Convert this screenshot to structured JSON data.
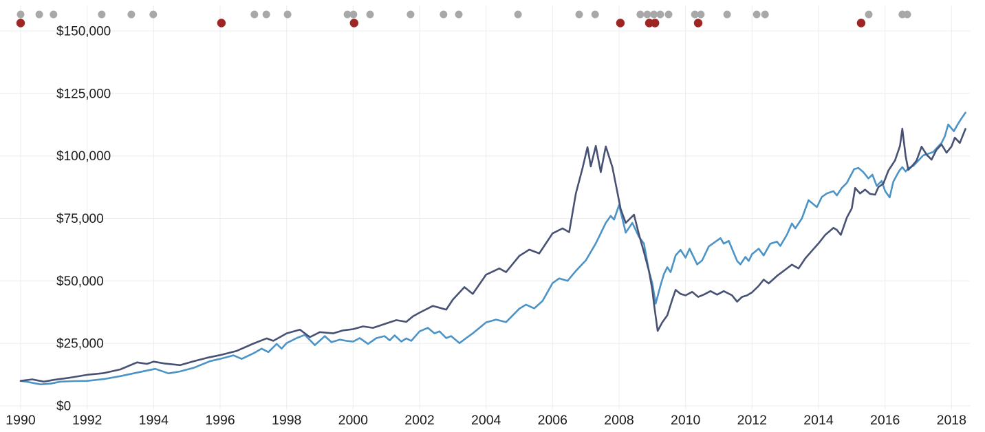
{
  "chart_data": {
    "type": "line",
    "title": "",
    "xlabel": "",
    "ylabel": "",
    "grid": true,
    "legend": "none",
    "background": "#ffffff",
    "gridline_color": "#ececec",
    "label_color": "#1b1b1b",
    "x_axis": {
      "range": [
        1990,
        2018.5
      ],
      "ticks": [
        1990,
        1992,
        1994,
        1996,
        1998,
        2000,
        2002,
        2004,
        2006,
        2008,
        2010,
        2012,
        2014,
        2016,
        2018
      ],
      "tick_labels": [
        "1990",
        "1992",
        "1994",
        "1996",
        "1998",
        "2000",
        "2002",
        "2004",
        "2006",
        "2008",
        "2010",
        "2012",
        "2014",
        "2016",
        "2018"
      ]
    },
    "y_axis": {
      "range": [
        0,
        150000
      ],
      "ticks": [
        0,
        25000,
        50000,
        75000,
        100000,
        125000,
        150000
      ],
      "tick_labels": [
        "$0",
        "$25,000",
        "$50,000",
        "$75,000",
        "$100,000",
        "$125,000",
        "$150,000"
      ]
    },
    "series": [
      {
        "name": "portfolio-light-blue",
        "color": "#4c93c6",
        "points": [
          [
            1990.0,
            10000
          ],
          [
            1990.2,
            9600
          ],
          [
            1990.6,
            8600
          ],
          [
            1990.9,
            8900
          ],
          [
            1991.2,
            9700
          ],
          [
            1991.6,
            9900
          ],
          [
            1992.0,
            10000
          ],
          [
            1992.5,
            10700
          ],
          [
            1993.0,
            11900
          ],
          [
            1993.5,
            13300
          ],
          [
            1994.05,
            14800
          ],
          [
            1994.45,
            13000
          ],
          [
            1994.8,
            13800
          ],
          [
            1995.2,
            15200
          ],
          [
            1995.7,
            17900
          ],
          [
            1996.0,
            18800
          ],
          [
            1996.4,
            20200
          ],
          [
            1996.65,
            18800
          ],
          [
            1997.0,
            21000
          ],
          [
            1997.25,
            22900
          ],
          [
            1997.45,
            21500
          ],
          [
            1997.7,
            24800
          ],
          [
            1997.85,
            22900
          ],
          [
            1998.0,
            25100
          ],
          [
            1998.3,
            27100
          ],
          [
            1998.55,
            28400
          ],
          [
            1998.85,
            24300
          ],
          [
            1999.15,
            27900
          ],
          [
            1999.35,
            25500
          ],
          [
            1999.6,
            26500
          ],
          [
            1999.8,
            26000
          ],
          [
            2000.0,
            25700
          ],
          [
            2000.2,
            27100
          ],
          [
            2000.45,
            24800
          ],
          [
            2000.7,
            27100
          ],
          [
            2000.95,
            27900
          ],
          [
            2001.1,
            26200
          ],
          [
            2001.25,
            28200
          ],
          [
            2001.45,
            25700
          ],
          [
            2001.6,
            27000
          ],
          [
            2001.75,
            26000
          ],
          [
            2002.0,
            29800
          ],
          [
            2002.25,
            31200
          ],
          [
            2002.45,
            29000
          ],
          [
            2002.6,
            29800
          ],
          [
            2002.8,
            27100
          ],
          [
            2002.95,
            27900
          ],
          [
            2003.1,
            26200
          ],
          [
            2003.2,
            25100
          ],
          [
            2003.4,
            27100
          ],
          [
            2003.6,
            29000
          ],
          [
            2003.8,
            31200
          ],
          [
            2004.0,
            33400
          ],
          [
            2004.3,
            34500
          ],
          [
            2004.6,
            33500
          ],
          [
            2005.0,
            38900
          ],
          [
            2005.2,
            40500
          ],
          [
            2005.45,
            39000
          ],
          [
            2005.7,
            42000
          ],
          [
            2006.0,
            49100
          ],
          [
            2006.2,
            51000
          ],
          [
            2006.45,
            50000
          ],
          [
            2006.7,
            54000
          ],
          [
            2007.0,
            58200
          ],
          [
            2007.3,
            65000
          ],
          [
            2007.6,
            73200
          ],
          [
            2007.75,
            76000
          ],
          [
            2007.85,
            74500
          ],
          [
            2008.0,
            80400
          ],
          [
            2008.2,
            69300
          ],
          [
            2008.4,
            73200
          ],
          [
            2008.6,
            67600
          ],
          [
            2008.75,
            64900
          ],
          [
            2008.9,
            53800
          ],
          [
            2009.0,
            49100
          ],
          [
            2009.1,
            40900
          ],
          [
            2009.25,
            48300
          ],
          [
            2009.35,
            52700
          ],
          [
            2009.45,
            55500
          ],
          [
            2009.55,
            53500
          ],
          [
            2009.7,
            60200
          ],
          [
            2009.85,
            62400
          ],
          [
            2010.0,
            59300
          ],
          [
            2010.12,
            62900
          ],
          [
            2010.35,
            56600
          ],
          [
            2010.5,
            58200
          ],
          [
            2010.7,
            63800
          ],
          [
            2010.9,
            65700
          ],
          [
            2011.05,
            67100
          ],
          [
            2011.15,
            64900
          ],
          [
            2011.3,
            66000
          ],
          [
            2011.55,
            58000
          ],
          [
            2011.65,
            56600
          ],
          [
            2011.8,
            59600
          ],
          [
            2011.9,
            58000
          ],
          [
            2012.0,
            60700
          ],
          [
            2012.2,
            62900
          ],
          [
            2012.35,
            60200
          ],
          [
            2012.55,
            64900
          ],
          [
            2012.75,
            65700
          ],
          [
            2012.85,
            64000
          ],
          [
            2013.05,
            68500
          ],
          [
            2013.2,
            73000
          ],
          [
            2013.3,
            71000
          ],
          [
            2013.5,
            75000
          ],
          [
            2013.7,
            82300
          ],
          [
            2013.95,
            79500
          ],
          [
            2014.1,
            83600
          ],
          [
            2014.25,
            85000
          ],
          [
            2014.45,
            85900
          ],
          [
            2014.55,
            84200
          ],
          [
            2014.7,
            87200
          ],
          [
            2014.85,
            89200
          ],
          [
            2015.07,
            94700
          ],
          [
            2015.2,
            95200
          ],
          [
            2015.35,
            93500
          ],
          [
            2015.5,
            91000
          ],
          [
            2015.62,
            92500
          ],
          [
            2015.75,
            88000
          ],
          [
            2015.9,
            90000
          ],
          [
            2016.0,
            86000
          ],
          [
            2016.14,
            83400
          ],
          [
            2016.25,
            89700
          ],
          [
            2016.43,
            94100
          ],
          [
            2016.52,
            95500
          ],
          [
            2016.62,
            93800
          ],
          [
            2016.72,
            95200
          ],
          [
            2016.85,
            96000
          ],
          [
            2016.95,
            97400
          ],
          [
            2017.05,
            98800
          ],
          [
            2017.15,
            100200
          ],
          [
            2017.35,
            101100
          ],
          [
            2017.45,
            101600
          ],
          [
            2017.6,
            103800
          ],
          [
            2017.7,
            105200
          ],
          [
            2017.8,
            107900
          ],
          [
            2017.9,
            112600
          ],
          [
            2018.07,
            109900
          ],
          [
            2018.15,
            111800
          ],
          [
            2018.25,
            114000
          ],
          [
            2018.32,
            115400
          ],
          [
            2018.42,
            117300
          ]
        ]
      },
      {
        "name": "portfolio-dark-navy",
        "color": "#475173",
        "points": [
          [
            1990.0,
            10000
          ],
          [
            1990.35,
            10600
          ],
          [
            1990.7,
            9700
          ],
          [
            1991.0,
            10400
          ],
          [
            1991.5,
            11300
          ],
          [
            1992.0,
            12400
          ],
          [
            1992.5,
            13100
          ],
          [
            1993.0,
            14600
          ],
          [
            1993.5,
            17400
          ],
          [
            1993.8,
            16800
          ],
          [
            1994.0,
            17700
          ],
          [
            1994.35,
            16900
          ],
          [
            1994.8,
            16300
          ],
          [
            1995.2,
            17800
          ],
          [
            1995.6,
            19200
          ],
          [
            1996.0,
            20300
          ],
          [
            1996.5,
            22000
          ],
          [
            1997.0,
            24900
          ],
          [
            1997.4,
            27000
          ],
          [
            1997.6,
            26000
          ],
          [
            1998.0,
            29000
          ],
          [
            1998.4,
            30500
          ],
          [
            1998.7,
            27500
          ],
          [
            1999.0,
            29500
          ],
          [
            1999.4,
            29000
          ],
          [
            1999.7,
            30200
          ],
          [
            2000.0,
            30700
          ],
          [
            2000.3,
            31800
          ],
          [
            2000.6,
            31200
          ],
          [
            2001.0,
            33000
          ],
          [
            2001.3,
            34300
          ],
          [
            2001.6,
            33600
          ],
          [
            2001.8,
            35800
          ],
          [
            2002.0,
            37300
          ],
          [
            2002.4,
            40000
          ],
          [
            2002.8,
            38500
          ],
          [
            2003.0,
            42500
          ],
          [
            2003.35,
            47500
          ],
          [
            2003.6,
            44800
          ],
          [
            2004.0,
            52500
          ],
          [
            2004.4,
            55000
          ],
          [
            2004.6,
            53500
          ],
          [
            2005.0,
            60000
          ],
          [
            2005.3,
            62500
          ],
          [
            2005.6,
            61000
          ],
          [
            2006.0,
            69000
          ],
          [
            2006.3,
            71000
          ],
          [
            2006.5,
            69500
          ],
          [
            2006.7,
            85000
          ],
          [
            2006.9,
            95000
          ],
          [
            2007.05,
            103500
          ],
          [
            2007.15,
            95800
          ],
          [
            2007.3,
            104000
          ],
          [
            2007.45,
            93500
          ],
          [
            2007.6,
            103800
          ],
          [
            2007.8,
            95500
          ],
          [
            2008.05,
            78700
          ],
          [
            2008.2,
            73200
          ],
          [
            2008.45,
            76500
          ],
          [
            2008.6,
            68500
          ],
          [
            2008.75,
            61500
          ],
          [
            2008.9,
            53900
          ],
          [
            2009.0,
            46500
          ],
          [
            2009.05,
            40900
          ],
          [
            2009.16,
            30000
          ],
          [
            2009.3,
            33400
          ],
          [
            2009.45,
            36200
          ],
          [
            2009.6,
            42500
          ],
          [
            2009.7,
            46400
          ],
          [
            2009.85,
            44800
          ],
          [
            2010.0,
            44200
          ],
          [
            2010.2,
            45600
          ],
          [
            2010.38,
            43600
          ],
          [
            2010.55,
            44500
          ],
          [
            2010.75,
            45900
          ],
          [
            2010.95,
            44500
          ],
          [
            2011.15,
            45900
          ],
          [
            2011.4,
            44200
          ],
          [
            2011.55,
            41700
          ],
          [
            2011.7,
            43600
          ],
          [
            2011.85,
            44200
          ],
          [
            2012.0,
            45400
          ],
          [
            2012.2,
            48000
          ],
          [
            2012.35,
            50500
          ],
          [
            2012.5,
            49000
          ],
          [
            2012.75,
            52000
          ],
          [
            2013.0,
            54500
          ],
          [
            2013.2,
            56500
          ],
          [
            2013.4,
            55000
          ],
          [
            2013.6,
            59000
          ],
          [
            2013.8,
            62000
          ],
          [
            2014.0,
            65000
          ],
          [
            2014.2,
            68400
          ],
          [
            2014.45,
            71200
          ],
          [
            2014.55,
            70400
          ],
          [
            2014.67,
            68400
          ],
          [
            2014.85,
            75300
          ],
          [
            2015.0,
            79000
          ],
          [
            2015.1,
            87200
          ],
          [
            2015.25,
            85000
          ],
          [
            2015.4,
            86500
          ],
          [
            2015.55,
            84800
          ],
          [
            2015.7,
            84500
          ],
          [
            2015.8,
            87500
          ],
          [
            2015.95,
            88900
          ],
          [
            2016.1,
            94100
          ],
          [
            2016.3,
            98200
          ],
          [
            2016.45,
            104000
          ],
          [
            2016.52,
            110900
          ],
          [
            2016.62,
            100000
          ],
          [
            2016.7,
            94400
          ],
          [
            2016.85,
            96500
          ],
          [
            2016.95,
            98200
          ],
          [
            2017.1,
            103700
          ],
          [
            2017.25,
            100500
          ],
          [
            2017.4,
            98500
          ],
          [
            2017.55,
            102500
          ],
          [
            2017.7,
            104600
          ],
          [
            2017.85,
            101300
          ],
          [
            2018.0,
            103800
          ],
          [
            2018.1,
            107300
          ],
          [
            2018.25,
            105200
          ],
          [
            2018.42,
            110800
          ]
        ]
      }
    ],
    "event_markers": {
      "gray": {
        "name": "gray-event-dot",
        "color": "#a8a8a8",
        "years": [
          1990.0,
          1990.56,
          1990.99,
          1992.44,
          1993.33,
          1993.99,
          1997.03,
          1997.39,
          1998.03,
          1999.83,
          2000.01,
          2000.51,
          2001.73,
          2002.72,
          2003.18,
          2004.96,
          2006.8,
          2007.28,
          2008.64,
          2008.85,
          2009.05,
          2009.24,
          2009.49,
          2010.28,
          2010.46,
          2011.25,
          2012.14,
          2012.39,
          2015.51,
          2016.52,
          2016.67
        ]
      },
      "red": {
        "name": "red-event-dot",
        "color": "#9e2723",
        "years": [
          1990.0,
          1996.04,
          2000.03,
          2008.04,
          2008.91,
          2009.08,
          2010.38,
          2015.28
        ]
      }
    }
  }
}
